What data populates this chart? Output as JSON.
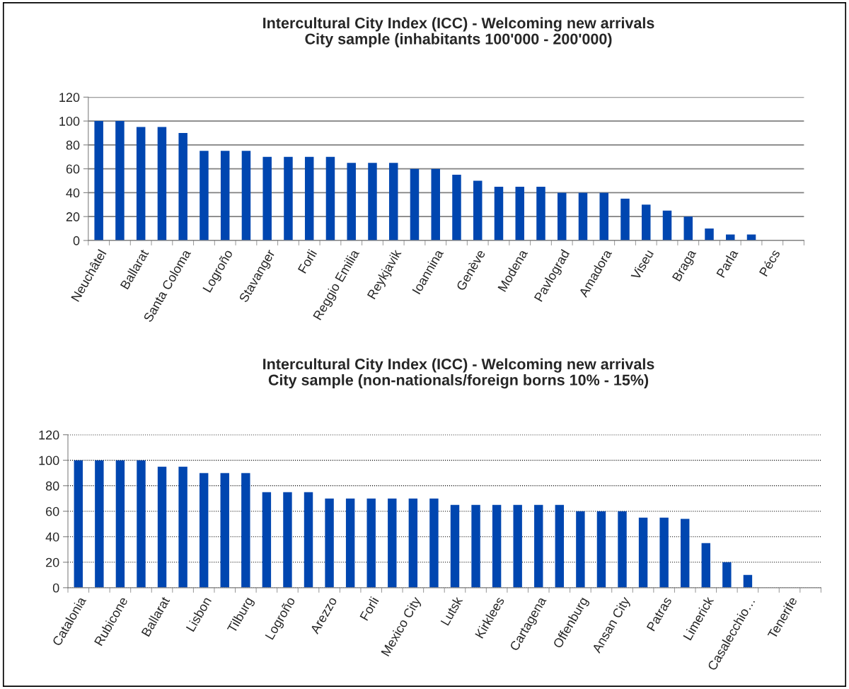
{
  "chart_data": [
    {
      "type": "bar",
      "title": "Intercultural City Index (ICC) - Welcoming new arrivals\nCity sample (inhabitants 100'000 - 200'000)",
      "categories": [
        "Neuchâtel",
        null,
        "Ballarat",
        null,
        "Santa Coloma",
        null,
        "Logroño",
        null,
        "Stavanger",
        null,
        "Forli",
        null,
        "Reggio Emilia",
        null,
        "Reykjavik",
        null,
        "Ioannina",
        null,
        "Genève",
        null,
        "Modena",
        null,
        "Pavlograd",
        null,
        "Amadora",
        null,
        "Viseu",
        null,
        "Braga",
        null,
        "Parla",
        null,
        "Pécs",
        null
      ],
      "values": [
        100,
        100,
        95,
        95,
        90,
        75,
        75,
        75,
        70,
        70,
        70,
        70,
        65,
        65,
        65,
        60,
        60,
        55,
        50,
        45,
        45,
        45,
        40,
        40,
        40,
        35,
        30,
        25,
        20,
        10,
        5,
        5,
        0,
        0
      ],
      "color": "#0046b0",
      "ylim": [
        0,
        120
      ],
      "yticks": [
        0,
        20,
        40,
        60,
        80,
        100,
        120
      ],
      "grid": "y"
    },
    {
      "type": "bar",
      "title": "Intercultural City Index (ICC) - Welcoming new arrivals\nCity sample (non-nationals/foreign borns 10% - 15%)",
      "categories": [
        "Catalonia",
        null,
        "Rubicone",
        null,
        "Ballarat",
        null,
        "Lisbon",
        null,
        "Tilburg",
        null,
        "Logroño",
        null,
        "Arezzo",
        null,
        "Forli",
        null,
        "Mexico City",
        null,
        "Lutsk",
        null,
        "Kirklees",
        null,
        "Cartagena",
        null,
        "Offenburg",
        null,
        "Ansan City",
        null,
        "Patras",
        null,
        "Limerick",
        null,
        "Casalecchio…",
        null,
        "Tenerife",
        null
      ],
      "values": [
        100,
        100,
        100,
        100,
        95,
        95,
        90,
        90,
        90,
        75,
        75,
        75,
        70,
        70,
        70,
        70,
        70,
        70,
        65,
        65,
        65,
        65,
        65,
        65,
        60,
        60,
        60,
        55,
        55,
        54,
        35,
        20,
        10,
        0,
        0,
        0
      ],
      "color": "#0046b0",
      "ylim": [
        0,
        120
      ],
      "yticks": [
        0,
        20,
        40,
        60,
        80,
        100,
        120
      ],
      "grid": "y"
    }
  ]
}
